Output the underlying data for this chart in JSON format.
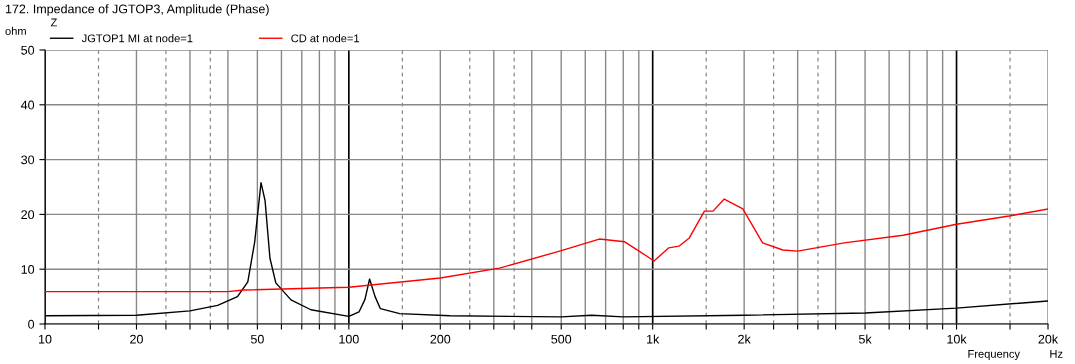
{
  "chart_data": {
    "type": "line",
    "title": "172. Impedance of JGTOP3, Amplitude (Phase)",
    "ylabel": "ohm",
    "xlabel": "Frequency",
    "legend_title": "Z",
    "annotations": [
      "Hz"
    ],
    "log": "x",
    "grid": true,
    "legend": "top",
    "marker": "none",
    "line_style": "solid",
    "xlim": [
      10,
      20000
    ],
    "ylim": [
      0,
      50
    ],
    "xticks": [
      10,
      {
        "value": 15,
        "label": null
      },
      20,
      {
        "value": 25,
        "label": null
      },
      {
        "value": 30,
        "label": null
      },
      {
        "value": 35,
        "label": null
      },
      {
        "value": 40,
        "label": null
      },
      50,
      {
        "value": 60,
        "label": null
      },
      {
        "value": 70,
        "label": null
      },
      {
        "value": 80,
        "label": null
      },
      {
        "value": 90,
        "label": null
      },
      100,
      {
        "value": 150,
        "label": null
      },
      200,
      {
        "value": 250,
        "label": null
      },
      {
        "value": 300,
        "label": null
      },
      {
        "value": 350,
        "label": null
      },
      {
        "value": 400,
        "label": null
      },
      500,
      {
        "value": 600,
        "label": null
      },
      {
        "value": 700,
        "label": null
      },
      {
        "value": 800,
        "label": null
      },
      {
        "value": 900,
        "label": null
      },
      {
        "value": 1000,
        "label": "1k"
      },
      {
        "value": 1500,
        "label": null
      },
      {
        "value": 2000,
        "label": "2k"
      },
      {
        "value": 2500,
        "label": null
      },
      {
        "value": 3000,
        "label": null
      },
      {
        "value": 3500,
        "label": null
      },
      {
        "value": 4000,
        "label": null
      },
      {
        "value": 5000,
        "label": "5k"
      },
      {
        "value": 6000,
        "label": null
      },
      {
        "value": 7000,
        "label": null
      },
      {
        "value": 8000,
        "label": null
      },
      {
        "value": 9000,
        "label": null
      },
      {
        "value": 10000,
        "label": "10k"
      },
      {
        "value": 15000,
        "label": null
      },
      {
        "value": 20000,
        "label": "20k"
      }
    ],
    "yticks": [
      0,
      10,
      20,
      30,
      40,
      50
    ],
    "series": [
      {
        "name": "JGTOP1 MI at node=1",
        "color": "#000000",
        "x": [
          10,
          20,
          30,
          37,
          43,
          46.5,
          49,
          51.4,
          53,
          55,
          57.5,
          64.5,
          75,
          100,
          108,
          113,
          117,
          122,
          127,
          147,
          215,
          500,
          630,
          800,
          2000,
          5000,
          10000,
          20000
        ],
        "values": [
          1.5,
          1.6,
          2.4,
          3.4,
          5,
          7.7,
          15,
          25.8,
          22.5,
          12,
          7.5,
          4.4,
          2.6,
          1.4,
          2.2,
          4.5,
          8.2,
          5,
          2.8,
          1.9,
          1.5,
          1.3,
          1.6,
          1.3,
          1.6,
          2.0,
          2.9,
          4.2
        ]
      },
      {
        "name": "CD at node=1",
        "color": "#ff0000",
        "x": [
          10,
          40,
          45,
          100,
          200,
          313,
          494,
          667,
          809,
          980,
          1010,
          1130,
          1220,
          1320,
          1480,
          1580,
          1720,
          1980,
          2300,
          2680,
          3000,
          4270,
          6670,
          10000,
          14900,
          20000
        ],
        "values": [
          5.9,
          5.9,
          6.2,
          6.7,
          8.4,
          10.2,
          13.3,
          15.5,
          15,
          12,
          11.5,
          13.9,
          14.2,
          15.7,
          20.6,
          20.6,
          22.8,
          21,
          14.8,
          13.5,
          13.3,
          14.8,
          16.2,
          18.2,
          19.7,
          21
        ]
      }
    ]
  }
}
